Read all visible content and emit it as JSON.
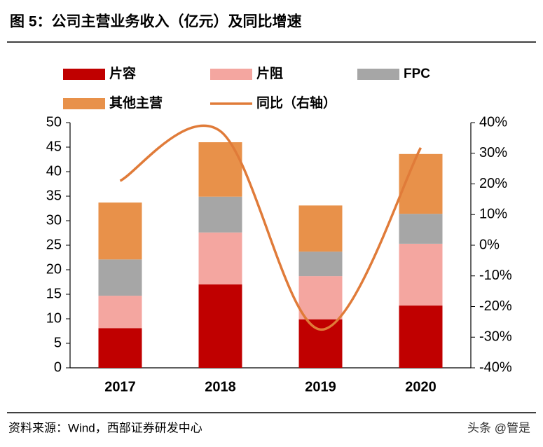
{
  "chart_data": {
    "type": "combo",
    "title": "图 5：公司主营业务收入（亿元）及同比增速",
    "source": "资料来源：Wind，西部证券研发中心",
    "watermark": "头条 @管是",
    "categories": [
      "2017",
      "2018",
      "2019",
      "2020"
    ],
    "series": [
      {
        "name": "片容",
        "type": "bar",
        "color": "#c00000",
        "values": [
          8.1,
          17.0,
          9.9,
          12.7
        ]
      },
      {
        "name": "片阻",
        "type": "bar",
        "color": "#f4a6a0",
        "values": [
          6.6,
          10.6,
          8.8,
          12.6
        ]
      },
      {
        "name": "FPC",
        "type": "bar",
        "color": "#a6a6a6",
        "values": [
          7.4,
          7.3,
          5.0,
          6.1
        ]
      },
      {
        "name": "其他主营",
        "type": "bar",
        "color": "#e8914a",
        "values": [
          11.6,
          11.1,
          9.4,
          12.2
        ]
      },
      {
        "name": "同比（右轴）",
        "type": "line",
        "axis": "y2",
        "color": "#e07b39",
        "values": [
          21.0,
          37.2,
          -27.5,
          31.8
        ]
      }
    ],
    "ylim": [
      0,
      50
    ],
    "yticks": [
      0,
      5,
      10,
      15,
      20,
      25,
      30,
      35,
      40,
      45,
      50
    ],
    "y2lim": [
      -40,
      40
    ],
    "y2ticks": [
      {
        "value": -40,
        "label": "-40%"
      },
      {
        "value": -30,
        "label": "-30%"
      },
      {
        "value": -20,
        "label": "-20%"
      },
      {
        "value": -10,
        "label": "-10%"
      },
      {
        "value": 0,
        "label": "0%"
      },
      {
        "value": 10,
        "label": "10%"
      },
      {
        "value": 20,
        "label": "20%"
      },
      {
        "value": 30,
        "label": "30%"
      },
      {
        "value": 40,
        "label": "40%"
      }
    ]
  }
}
